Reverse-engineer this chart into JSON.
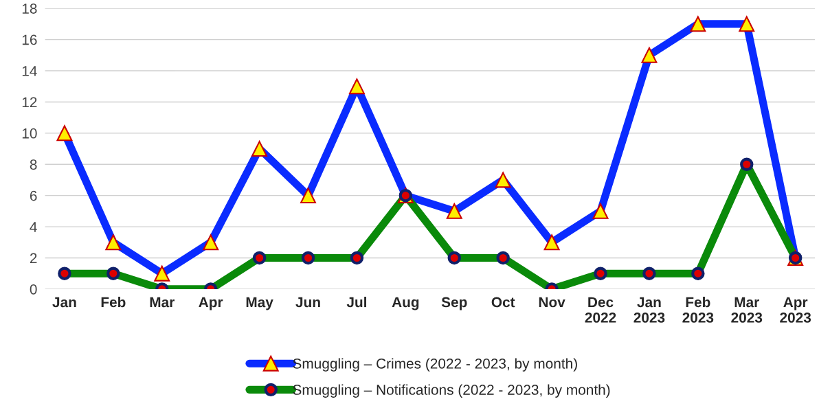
{
  "chart_data": {
    "type": "line",
    "categories": [
      "Jan",
      "Feb",
      "Mar",
      "Apr",
      "May",
      "Jun",
      "Jul",
      "Aug",
      "Sep",
      "Oct",
      "Nov",
      "Dec\n2022",
      "Jan\n2023",
      "Feb\n2023",
      "Mar\n2023",
      "Apr\n2023"
    ],
    "series": [
      {
        "name": "Smuggling – Crimes (2022 - 2023, by month)",
        "color": "#0a2bff",
        "marker": "triangle",
        "values": [
          10,
          3,
          1,
          3,
          9,
          6,
          13,
          6,
          5,
          7,
          3,
          5,
          15,
          17,
          17,
          2
        ]
      },
      {
        "name": "Smuggling – Notifications (2022 - 2023, by month)",
        "color": "#0a8a0a",
        "marker": "circle",
        "values": [
          1,
          1,
          0,
          0,
          2,
          2,
          2,
          6,
          2,
          2,
          0,
          1,
          1,
          1,
          8,
          2
        ]
      }
    ],
    "ylim": [
      0,
      18
    ],
    "yticks": [
      0,
      2,
      4,
      6,
      8,
      10,
      12,
      14,
      16,
      18
    ],
    "grid": "y",
    "legend": "bottom",
    "line_style": "solid"
  }
}
